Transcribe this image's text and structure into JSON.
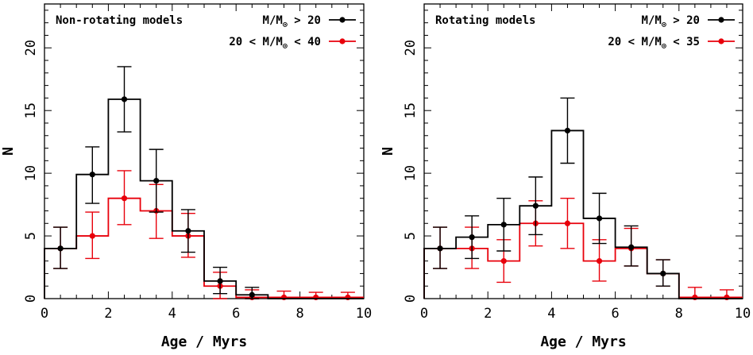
{
  "chart_data": [
    {
      "type": "histogram",
      "title": "Non-rotating models",
      "xlabel": "Age / Myrs",
      "ylabel": "N",
      "xlim": [
        0,
        10
      ],
      "ylim": [
        0,
        23.5
      ],
      "x_ticks": [
        0,
        2,
        4,
        6,
        8,
        10
      ],
      "y_ticks": [
        0,
        5,
        10,
        15,
        20
      ],
      "legend_position": "top-right",
      "series": [
        {
          "legend_prefix": "M/M",
          "legend_suffix": " > 20",
          "color": "#000000",
          "bin_edges": [
            0,
            1,
            2,
            3,
            4,
            5,
            6,
            7,
            8,
            9,
            10
          ],
          "bin_values": [
            4.0,
            9.9,
            15.9,
            9.4,
            5.4,
            1.4,
            0.3,
            0.0,
            0.0,
            0.0
          ],
          "points_x": [
            0.5,
            1.5,
            2.5,
            3.5,
            4.5,
            5.5,
            6.5
          ],
          "points_y": [
            4.0,
            9.9,
            15.9,
            9.4,
            5.4,
            1.4,
            0.3
          ],
          "err_low": [
            2.4,
            7.6,
            13.3,
            6.9,
            3.7,
            0.4,
            0.0
          ],
          "err_high": [
            5.7,
            12.1,
            18.5,
            11.9,
            7.1,
            2.5,
            0.9
          ]
        },
        {
          "legend_prefix": "20 < M/M",
          "legend_suffix": " < 40",
          "color": "#e8000b",
          "bin_edges": [
            0,
            1,
            2,
            3,
            4,
            5,
            6,
            7,
            8,
            9,
            10
          ],
          "bin_values": [
            4.0,
            5.0,
            8.0,
            7.0,
            5.0,
            1.0,
            0.1,
            0.1,
            0.1,
            0.1
          ],
          "points_x": [
            0.5,
            1.5,
            2.5,
            3.5,
            4.5,
            5.5,
            6.5,
            7.5,
            8.5,
            9.5
          ],
          "points_y": [
            4.0,
            5.0,
            8.0,
            7.0,
            5.0,
            1.0,
            0.1,
            0.1,
            0.1,
            0.1
          ],
          "err_low": [
            2.4,
            3.2,
            5.9,
            4.8,
            3.3,
            0.0,
            0.0,
            0.0,
            0.0,
            0.0
          ],
          "err_high": [
            5.7,
            6.9,
            10.2,
            9.1,
            6.8,
            2.1,
            0.7,
            0.6,
            0.5,
            0.5
          ]
        }
      ]
    },
    {
      "type": "histogram",
      "title": "Rotating models",
      "xlabel": "Age / Myrs",
      "ylabel": "N",
      "xlim": [
        0,
        10
      ],
      "ylim": [
        0,
        23.5
      ],
      "x_ticks": [
        0,
        2,
        4,
        6,
        8,
        10
      ],
      "y_ticks": [
        0,
        5,
        10,
        15,
        20
      ],
      "legend_position": "top-right",
      "series": [
        {
          "legend_prefix": "M/M",
          "legend_suffix": " > 20",
          "color": "#000000",
          "bin_edges": [
            0,
            1,
            2,
            3,
            4,
            5,
            6,
            7,
            8,
            9,
            10
          ],
          "bin_values": [
            4.0,
            4.9,
            5.9,
            7.4,
            13.4,
            6.4,
            4.1,
            2.0,
            0.0,
            0.0
          ],
          "points_x": [
            0.5,
            1.5,
            2.5,
            3.5,
            4.5,
            5.5,
            6.5,
            7.5
          ],
          "points_y": [
            4.0,
            4.9,
            5.9,
            7.4,
            13.4,
            6.4,
            4.1,
            2.0
          ],
          "err_low": [
            2.4,
            3.2,
            3.8,
            5.1,
            10.8,
            4.4,
            2.6,
            1.0
          ],
          "err_high": [
            5.7,
            6.6,
            8.0,
            9.7,
            16.0,
            8.4,
            5.8,
            3.1
          ]
        },
        {
          "legend_prefix": "20 < M/M",
          "legend_suffix": " < 35",
          "color": "#e8000b",
          "bin_edges": [
            0,
            1,
            2,
            3,
            4,
            5,
            6,
            7,
            8,
            9,
            10
          ],
          "bin_values": [
            4.0,
            4.0,
            3.0,
            6.0,
            6.0,
            3.0,
            4.0,
            2.0,
            0.1,
            0.1
          ],
          "points_x": [
            0.5,
            1.5,
            2.5,
            3.5,
            4.5,
            5.5,
            6.5,
            7.5,
            8.5,
            9.5
          ],
          "points_y": [
            4.0,
            4.0,
            3.0,
            6.0,
            6.0,
            3.0,
            4.0,
            2.0,
            0.1,
            0.1
          ],
          "err_low": [
            2.4,
            2.4,
            1.3,
            4.2,
            4.0,
            1.4,
            2.6,
            1.0,
            0.0,
            0.0
          ],
          "err_high": [
            5.7,
            5.7,
            4.7,
            7.8,
            8.0,
            4.7,
            5.6,
            3.1,
            0.9,
            0.7
          ]
        }
      ]
    }
  ]
}
